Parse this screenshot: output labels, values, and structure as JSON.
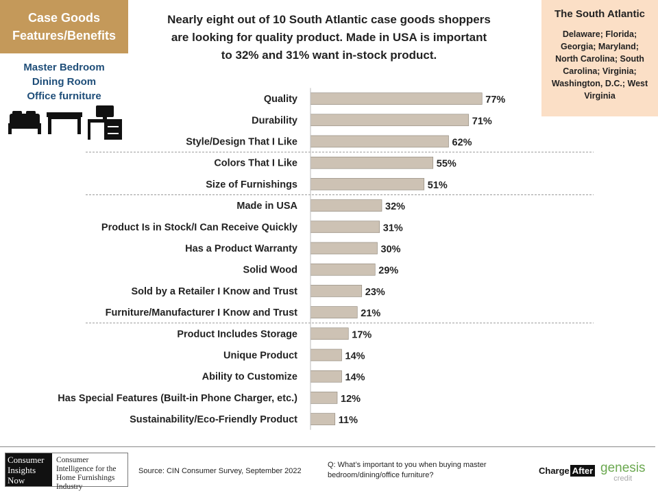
{
  "tag": {
    "line1": "Case Goods",
    "line2": "Features/Benefits"
  },
  "headline": {
    "line1": "Nearly eight out of 10 South Atlantic case goods shoppers",
    "line2": "are looking for quality product. Made in USA is important",
    "line3": "to 32% and 31% want in-stock product."
  },
  "region": {
    "title": "The South Atlantic",
    "states": "Delaware; Florida; Georgia; Maryland; North Carolina; South Carolina; Virginia; Washington, D.C.; West Virginia"
  },
  "rooms": [
    "Master Bedroom",
    "Dining Room",
    "Office furniture"
  ],
  "icons": [
    "bed-icon",
    "table-icon",
    "desk-icon"
  ],
  "chart_data": {
    "type": "bar",
    "orientation": "horizontal",
    "categories": [
      "Quality",
      "Durability",
      "Style/Design That I Like",
      "Colors That I Like",
      "Size of Furnishings",
      "Made in USA",
      "Product Is in Stock/I Can Receive Quickly",
      "Has a Product Warranty",
      "Solid Wood",
      "Sold by a Retailer I Know and Trust",
      "Furniture/Manufacturer I Know and Trust",
      "Product Includes Storage",
      "Unique Product",
      "Ability to Customize",
      "Has Special Features (Built-in Phone Charger, etc.)",
      "Sustainability/Eco-Friendly Product"
    ],
    "values": [
      77,
      71,
      62,
      55,
      51,
      32,
      31,
      30,
      29,
      23,
      21,
      17,
      14,
      14,
      12,
      11
    ],
    "value_suffix": "%",
    "group_separators_after": [
      2,
      4,
      10
    ],
    "bar_color": "#cdc2b4",
    "bar_border": "#8a8276",
    "xlim": [
      0,
      100
    ]
  },
  "footer": {
    "logo_left": [
      "Consumer",
      "Insights",
      "Now"
    ],
    "logo_right": "Consumer Intelligence for the Home Furnishings Industry",
    "source": "Source: CIN Consumer Survey, September  2022",
    "question": "Q: What’s important to you when buying master bedroom/dining/office furniture?",
    "chargeafter": [
      "Charge",
      "After"
    ],
    "genesis": [
      "genesis",
      "credit"
    ]
  }
}
